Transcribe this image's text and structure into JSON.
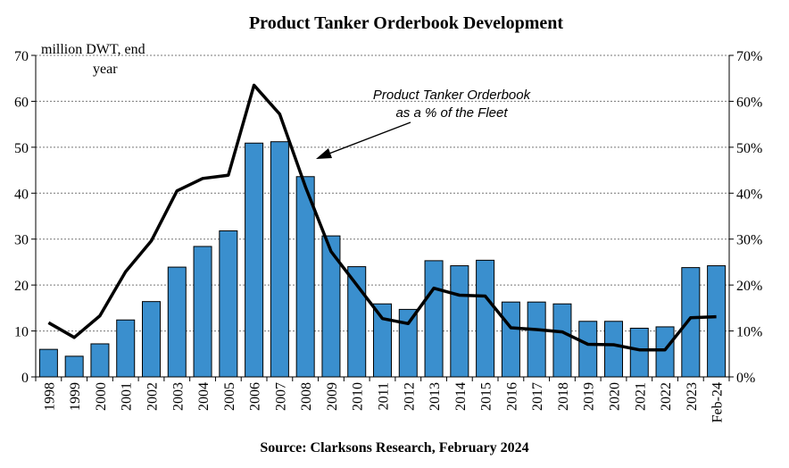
{
  "chart_data": {
    "type": "bar",
    "title": "Product Tanker Orderbook Development",
    "source": "Source: Clarksons Research, February 2024",
    "ylabel_left_line1": "million DWT, end",
    "ylabel_left_line2": "year",
    "annotation_line1": "Product Tanker Orderbook",
    "annotation_line2": "as a % of the Fleet",
    "categories": [
      "1998",
      "1999",
      "2000",
      "2001",
      "2002",
      "2003",
      "2004",
      "2005",
      "2006",
      "2007",
      "2008",
      "2009",
      "2010",
      "2011",
      "2012",
      "2013",
      "2014",
      "2015",
      "2016",
      "2017",
      "2018",
      "2019",
      "2020",
      "2021",
      "2022",
      "2023",
      "Feb-24"
    ],
    "series": [
      {
        "name": "Orderbook (million DWT)",
        "type": "bar",
        "axis": "left",
        "color": "#3a8fce",
        "values": [
          6.0,
          4.5,
          7.2,
          12.4,
          16.4,
          23.9,
          28.4,
          31.8,
          50.9,
          51.2,
          43.6,
          30.7,
          24.0,
          15.9,
          14.7,
          25.3,
          24.2,
          25.4,
          16.3,
          16.3,
          15.9,
          12.1,
          12.1,
          10.6,
          10.9,
          23.8,
          24.2
        ]
      },
      {
        "name": "Product Tanker Orderbook as a % of the Fleet",
        "type": "line",
        "axis": "right",
        "color": "#000000",
        "values": [
          11.8,
          8.6,
          13.3,
          22.9,
          29.6,
          40.5,
          43.2,
          43.9,
          63.5,
          57.2,
          41.4,
          27.3,
          20.0,
          12.7,
          11.6,
          19.3,
          17.8,
          17.6,
          10.7,
          10.3,
          9.8,
          7.1,
          7.0,
          5.9,
          5.9,
          12.9,
          13.1
        ]
      }
    ],
    "ylim": [
      0,
      70
    ],
    "yticks": [
      "0",
      "10",
      "20",
      "30",
      "40",
      "50",
      "60",
      "70"
    ],
    "y2lim": [
      0,
      70
    ],
    "y2ticks": [
      "0%",
      "10%",
      "20%",
      "30%",
      "40%",
      "50%",
      "60%",
      "70%"
    ],
    "grid": true
  }
}
